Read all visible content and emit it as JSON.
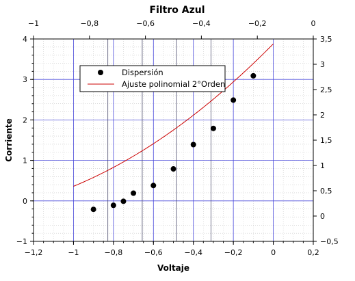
{
  "chart_data": {
    "type": "scatter",
    "title": "Filtro Azul",
    "xlabel": "Voltaje",
    "ylabel": "Corriente",
    "xlim": [
      -1.2,
      0.2
    ],
    "ylim": [
      -1,
      4
    ],
    "x_ticks": [
      "−1,2",
      "−1",
      "−0,8",
      "−0,6",
      "−0,4",
      "−0,2",
      "0",
      "0,2"
    ],
    "y_ticks": [
      "−1",
      "0",
      "1",
      "2",
      "3",
      "4"
    ],
    "top_x_lim": [
      -1,
      0
    ],
    "top_x_ticks": [
      "−1",
      "−0,8",
      "−0,6",
      "−0,4",
      "−0,2",
      "0"
    ],
    "right_y_lim": [
      -0.5,
      3.5
    ],
    "right_y_ticks": [
      "−0,5",
      "0",
      "0,5",
      "1",
      "1,5",
      "2",
      "2,5",
      "3",
      "3,5"
    ],
    "grid": true,
    "legend_position": "top-left",
    "series": [
      {
        "name": "Dispersión",
        "kind": "scatter",
        "color": "#000000",
        "x": [
          -0.9,
          -0.8,
          -0.75,
          -0.7,
          -0.6,
          -0.5,
          -0.4,
          -0.3,
          -0.2,
          -0.1
        ],
        "y": [
          -0.21,
          -0.11,
          -0.01,
          0.19,
          0.38,
          0.79,
          1.39,
          1.79,
          2.49,
          3.09
        ]
      },
      {
        "name": "Ajuste polinomial 2°Orden",
        "kind": "line",
        "color": "#cc0000",
        "coefficients": [
          3.88,
          5.0,
          1.48
        ],
        "x_range": [
          -1.0,
          0.0
        ]
      }
    ]
  }
}
